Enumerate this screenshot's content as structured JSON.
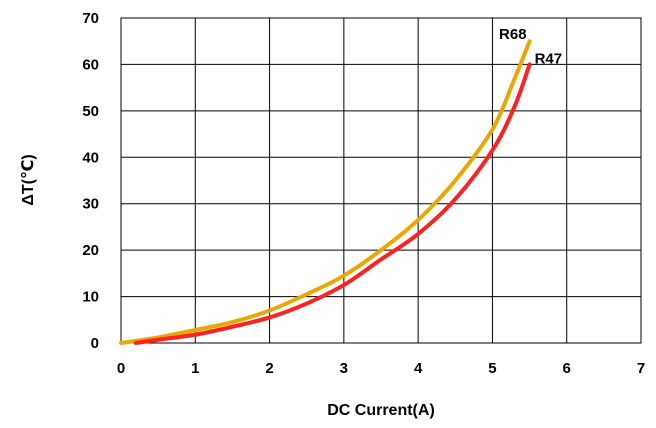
{
  "chart_data": {
    "type": "line",
    "title": "",
    "xlabel": "DC Current(A)",
    "ylabel": "ΔT(℃)",
    "xlim": [
      0,
      7
    ],
    "ylim": [
      0,
      70
    ],
    "xticks": [
      "0",
      "1",
      "2",
      "3",
      "4",
      "5",
      "6",
      "7"
    ],
    "yticks": [
      "0",
      "10",
      "20",
      "30",
      "40",
      "50",
      "60",
      "70"
    ],
    "grid": true,
    "legend": "none",
    "series": [
      {
        "name": "R68",
        "color": "#e8a800",
        "points": [
          [
            0,
            0
          ],
          [
            0.5,
            1.2
          ],
          [
            1,
            2.8
          ],
          [
            1.5,
            4.5
          ],
          [
            2,
            7
          ],
          [
            2.5,
            10.5
          ],
          [
            3,
            14.5
          ],
          [
            3.5,
            20
          ],
          [
            4,
            26.5
          ],
          [
            4.5,
            35
          ],
          [
            5,
            46
          ],
          [
            5.3,
            57
          ],
          [
            5.5,
            65
          ]
        ]
      },
      {
        "name": "R47",
        "color": "#ff2020",
        "points": [
          [
            0.2,
            0
          ],
          [
            0.5,
            0.7
          ],
          [
            1,
            1.8
          ],
          [
            1.5,
            3.5
          ],
          [
            2,
            5.5
          ],
          [
            2.5,
            8.5
          ],
          [
            3,
            12.5
          ],
          [
            3.5,
            18
          ],
          [
            4,
            23.5
          ],
          [
            4.5,
            31
          ],
          [
            5,
            41.5
          ],
          [
            5.3,
            51
          ],
          [
            5.5,
            60
          ]
        ]
      }
    ]
  }
}
